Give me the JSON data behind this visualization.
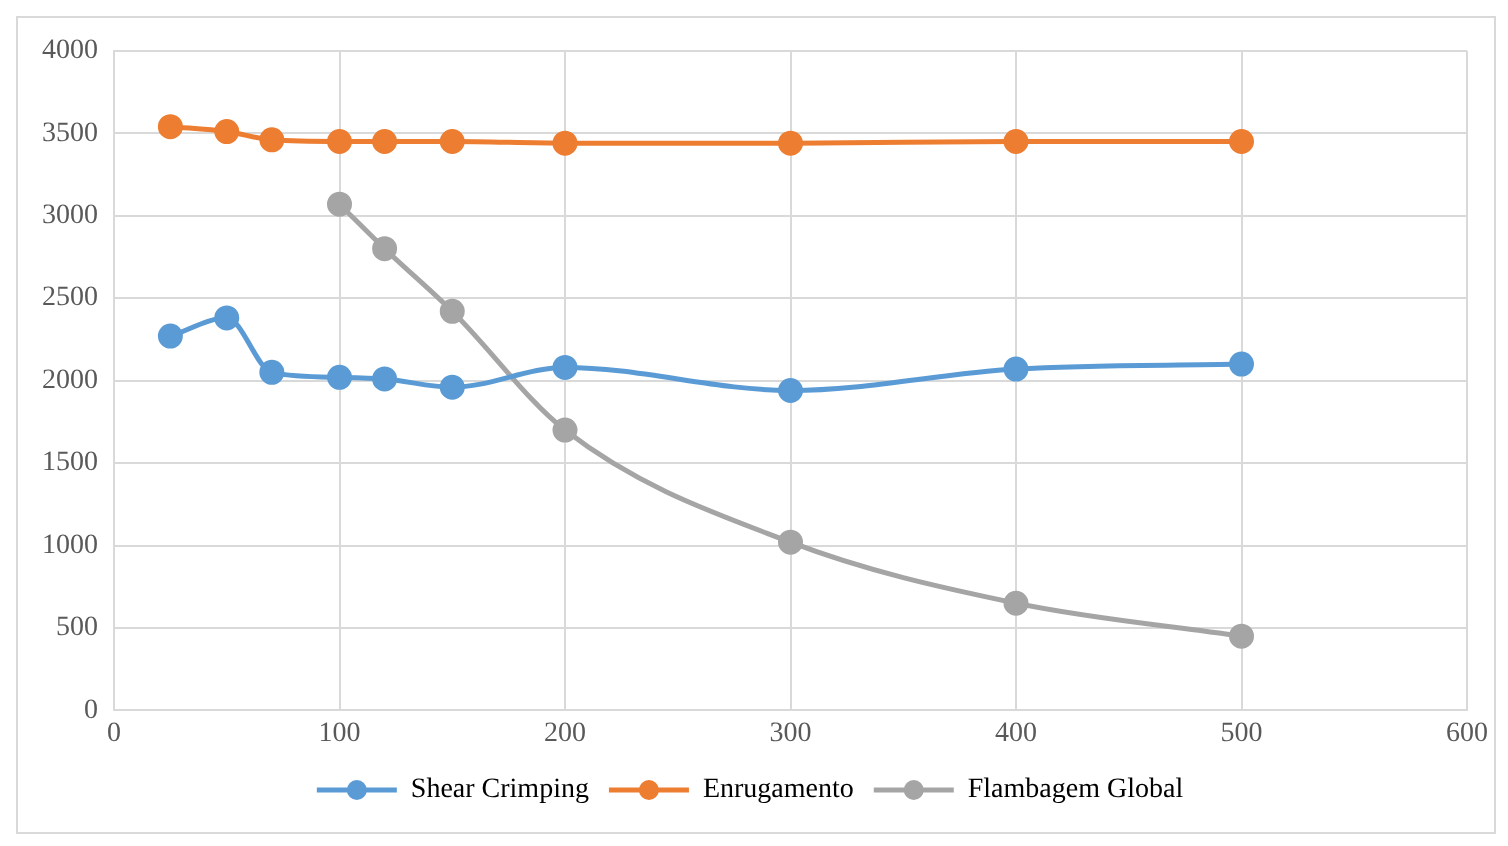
{
  "chart_data": {
    "type": "line",
    "x": [
      25,
      50,
      70,
      100,
      120,
      150,
      200,
      300,
      400,
      500
    ],
    "series": [
      {
        "name": "Shear Crimping",
        "color": "#5b9bd5",
        "values": [
          2270,
          2380,
          2050,
          2020,
          2010,
          1960,
          2080,
          1940,
          2070,
          2100
        ]
      },
      {
        "name": "Enrugamento",
        "color": "#ed7d31",
        "values": [
          3540,
          3510,
          3460,
          3450,
          3450,
          3450,
          3440,
          3440,
          3450,
          3450
        ]
      },
      {
        "name": "Flambagem Global",
        "color": "#a5a5a5",
        "values": [
          null,
          null,
          null,
          3070,
          2800,
          2420,
          1700,
          1020,
          650,
          450
        ]
      }
    ],
    "xlim": [
      0,
      600
    ],
    "xticks": [
      0,
      100,
      200,
      300,
      400,
      500,
      600
    ],
    "ylim": [
      0,
      4000
    ],
    "yticks": [
      0,
      500,
      1000,
      1500,
      2000,
      2500,
      3000,
      3500,
      4000
    ],
    "grid": true,
    "legend": "bottom",
    "marker": "circle",
    "line_style": "solid"
  }
}
